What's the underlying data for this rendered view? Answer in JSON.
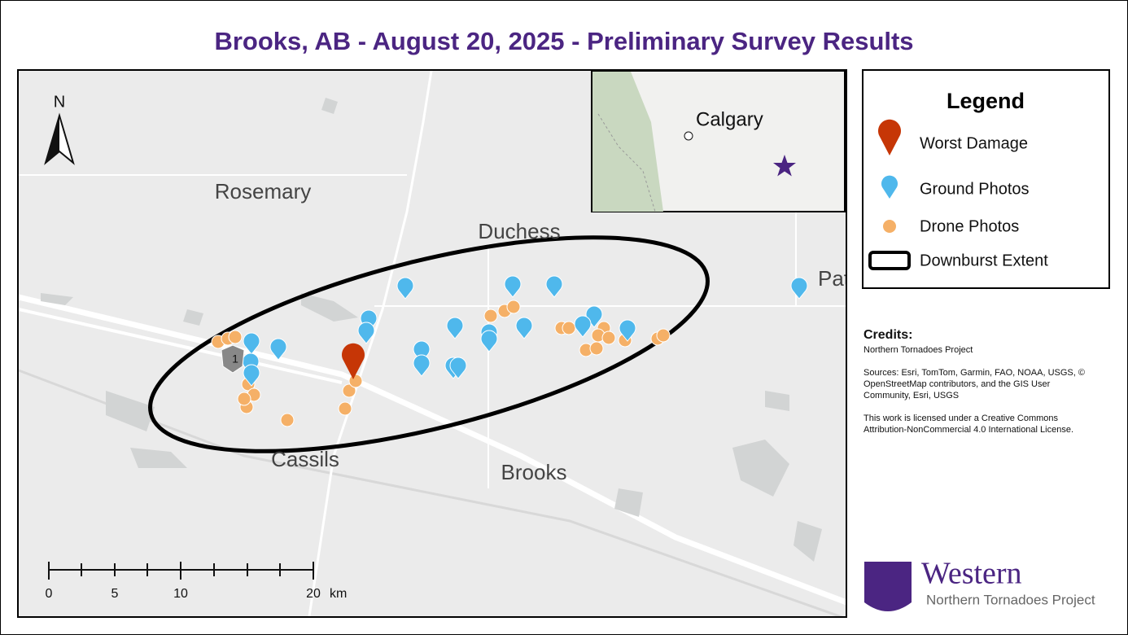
{
  "title": "Brooks, AB - August 20, 2025 - Preliminary Survey Results",
  "map": {
    "north": "N",
    "highway_shield": "1",
    "places": [
      "Rosemary",
      "Duchess",
      "Cassils",
      "Brooks",
      "Pat"
    ],
    "inset_place": "Calgary",
    "scale_labels": [
      "0",
      "5",
      "10",
      "20"
    ],
    "scale_unit": "km"
  },
  "legend": {
    "title": "Legend",
    "items": [
      "Worst Damage",
      "Ground Photos",
      "Drone Photos",
      "Downburst Extent"
    ]
  },
  "credits": {
    "heading": "Credits:",
    "lines": [
      "Northern Tornadoes Project",
      "",
      "Sources: Esri, TomTom, Garmin, FAO, NOAA, USGS, ©",
      "OpenStreetMap contributors, and the GIS User",
      "Community, Esri, USGS",
      "",
      "This work is licensed under a Creative Commons",
      "Attribution-NonCommercial 4.0 International License."
    ]
  },
  "logo": {
    "name": "Western",
    "subtitle": "Northern Tornadoes Project"
  }
}
